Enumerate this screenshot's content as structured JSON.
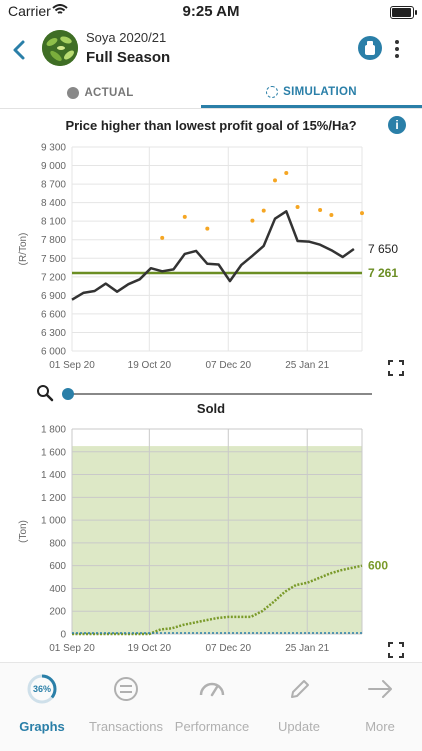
{
  "status_bar": {
    "carrier": "Carrier",
    "time": "9:25 AM"
  },
  "header": {
    "crop": "Soya 2020/21",
    "season": "Full Season"
  },
  "tabs": [
    {
      "label": "ACTUAL"
    },
    {
      "label": "SIMULATION"
    }
  ],
  "charts": {
    "price": {
      "title": "Price higher than lowest profit goal of 15%/Ha?"
    },
    "sold": {
      "title": "Sold"
    }
  },
  "nav": {
    "progress": "36%",
    "items": [
      {
        "label": "Graphs",
        "icon": "progress-ring-icon"
      },
      {
        "label": "Transactions",
        "icon": "transactions-icon"
      },
      {
        "label": "Performance",
        "icon": "gauge-icon"
      },
      {
        "label": "Update",
        "icon": "pencil-icon"
      },
      {
        "label": "More",
        "icon": "arrow-right-icon"
      }
    ]
  },
  "colors": {
    "accent": "#2a7fa8",
    "price_line": "#333333",
    "goal_line": "#6b8e23",
    "dots": "#f5a623",
    "sold_fill": "#dde8c6",
    "sold_line": "#7a9a2a"
  },
  "chart_data": [
    {
      "type": "line",
      "title": "Price higher than lowest profit goal of 15%/Ha?",
      "ylabel": "(R/Ton)",
      "ylim": [
        6000,
        9300
      ],
      "yticks": [
        "9 300",
        "9 000",
        "8 700",
        "8 400",
        "8 100",
        "7 800",
        "7 500",
        "7 200",
        "6 900",
        "6 600",
        "6 300",
        "6 000"
      ],
      "xticks": [
        "01 Sep 20",
        "19 Oct 20",
        "07 Dec 20",
        "25 Jan 21"
      ],
      "xlim": [
        "2020-09-01",
        "2021-02-28"
      ],
      "series": [
        {
          "type": "line",
          "values": [
            [
              "2020-09-01",
              6830
            ],
            [
              "2020-09-08",
              6940
            ],
            [
              "2020-09-15",
              6970
            ],
            [
              "2020-09-22",
              7090
            ],
            [
              "2020-09-29",
              6960
            ],
            [
              "2020-10-06",
              7080
            ],
            [
              "2020-10-13",
              7160
            ],
            [
              "2020-10-20",
              7340
            ],
            [
              "2020-10-27",
              7290
            ],
            [
              "2020-11-03",
              7320
            ],
            [
              "2020-11-10",
              7570
            ],
            [
              "2020-11-17",
              7620
            ],
            [
              "2020-11-24",
              7410
            ],
            [
              "2020-12-01",
              7400
            ],
            [
              "2020-12-08",
              7130
            ],
            [
              "2020-12-15",
              7390
            ],
            [
              "2020-12-22",
              7540
            ],
            [
              "2020-12-29",
              7700
            ],
            [
              "2021-01-05",
              8140
            ],
            [
              "2021-01-12",
              8260
            ],
            [
              "2021-01-19",
              7780
            ],
            [
              "2021-01-26",
              7770
            ],
            [
              "2021-02-02",
              7720
            ],
            [
              "2021-02-09",
              7630
            ],
            [
              "2021-02-16",
              7520
            ],
            [
              "2021-02-23",
              7650
            ]
          ],
          "end_label": "7 650"
        },
        {
          "type": "scatter",
          "values": [
            [
              "2020-10-27",
              7830
            ],
            [
              "2020-11-10",
              8170
            ],
            [
              "2020-11-24",
              7980
            ],
            [
              "2020-12-22",
              8110
            ],
            [
              "2020-12-29",
              8270
            ],
            [
              "2021-01-05",
              8760
            ],
            [
              "2021-01-12",
              8880
            ],
            [
              "2021-01-19",
              8330
            ],
            [
              "2021-02-02",
              8280
            ],
            [
              "2021-02-09",
              8200
            ],
            [
              "2021-02-28",
              8230
            ]
          ]
        },
        {
          "type": "goal",
          "value": 7261,
          "label": "7 261"
        }
      ]
    },
    {
      "type": "area",
      "title": "Sold",
      "ylabel": "(Ton)",
      "ylim": [
        0,
        1800
      ],
      "yticks": [
        "1 800",
        "1 600",
        "1 400",
        "1 200",
        "1 000",
        "800",
        "600",
        "400",
        "200",
        "0"
      ],
      "xticks": [
        "01 Sep 20",
        "19 Oct 20",
        "07 Dec 20",
        "25 Jan 21"
      ],
      "xlim": [
        "2020-09-01",
        "2021-02-28"
      ],
      "shaded_max": 1650,
      "series": [
        {
          "type": "step",
          "values": [
            [
              "2020-09-01",
              0
            ],
            [
              "2020-10-19",
              0
            ],
            [
              "2020-10-26",
              40
            ],
            [
              "2020-11-02",
              50
            ],
            [
              "2020-11-09",
              80
            ],
            [
              "2020-11-16",
              100
            ],
            [
              "2020-11-23",
              120
            ],
            [
              "2020-11-30",
              140
            ],
            [
              "2020-12-07",
              150
            ],
            [
              "2020-12-14",
              150
            ],
            [
              "2020-12-21",
              150
            ],
            [
              "2020-12-28",
              200
            ],
            [
              "2021-01-04",
              280
            ],
            [
              "2021-01-11",
              370
            ],
            [
              "2021-01-18",
              430
            ],
            [
              "2021-01-25",
              450
            ],
            [
              "2021-02-01",
              490
            ],
            [
              "2021-02-08",
              530
            ],
            [
              "2021-02-15",
              560
            ],
            [
              "2021-02-28",
              600
            ]
          ],
          "end_label": "600"
        }
      ]
    }
  ]
}
